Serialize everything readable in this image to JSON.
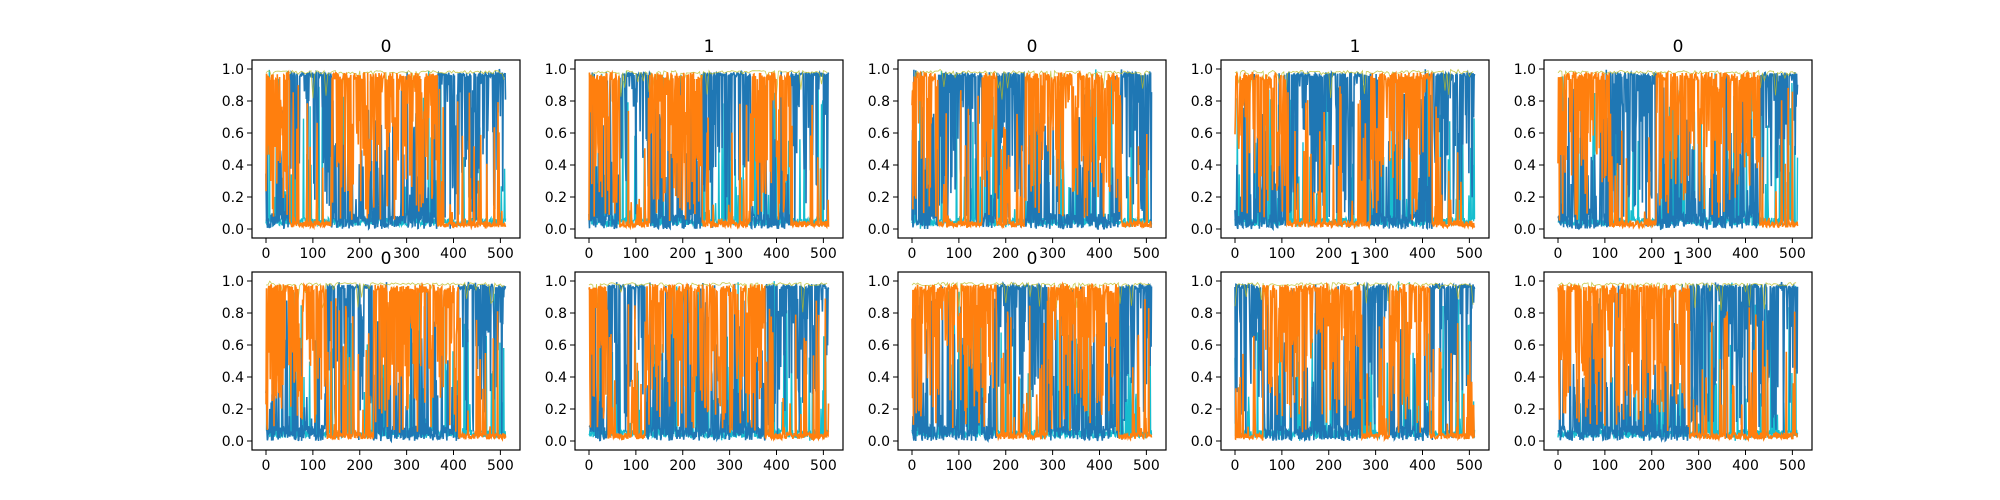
{
  "colors": {
    "series_a": "#1f77b4",
    "series_b": "#ff7f0e",
    "accent_cyan": "#17becf",
    "accent_olive": "#bcbd22",
    "accent_green": "#2ca02c"
  },
  "chart_data": [
    {
      "type": "line",
      "title": "0",
      "xlim": [
        0,
        512
      ],
      "ylim": [
        0,
        1
      ],
      "x_ticks": [
        "0",
        "100",
        "200",
        "300",
        "400",
        "500"
      ],
      "y_ticks": [
        "0.0",
        "0.2",
        "0.4",
        "0.6",
        "0.8",
        "1.0"
      ],
      "grid": false,
      "legend": "none",
      "dominant_series_b_ranges": [
        [
          0,
          50
        ],
        [
          140,
          365
        ]
      ]
    },
    {
      "type": "line",
      "title": "1",
      "xlim": [
        0,
        512
      ],
      "ylim": [
        0,
        1
      ],
      "x_ticks": [
        "0",
        "100",
        "200",
        "300",
        "400",
        "500"
      ],
      "y_ticks": [
        "0.0",
        "0.2",
        "0.4",
        "0.6",
        "0.8",
        "1.0"
      ],
      "grid": false,
      "legend": "none",
      "dominant_series_b_ranges": [
        [
          0,
          65
        ],
        [
          130,
          240
        ],
        [
          345,
          430
        ]
      ]
    },
    {
      "type": "line",
      "title": "0",
      "xlim": [
        0,
        512
      ],
      "ylim": [
        0,
        1
      ],
      "x_ticks": [
        "0",
        "100",
        "200",
        "300",
        "400",
        "500"
      ],
      "y_ticks": [
        "0.0",
        "0.2",
        "0.4",
        "0.6",
        "0.8",
        "1.0"
      ],
      "grid": false,
      "legend": "none",
      "dominant_series_b_ranges": [
        [
          0,
          55
        ],
        [
          150,
          180
        ],
        [
          240,
          445
        ]
      ]
    },
    {
      "type": "line",
      "title": "1",
      "xlim": [
        0,
        512
      ],
      "ylim": [
        0,
        1
      ],
      "x_ticks": [
        "0",
        "100",
        "200",
        "300",
        "400",
        "500"
      ],
      "y_ticks": [
        "0.0",
        "0.2",
        "0.4",
        "0.6",
        "0.8",
        "1.0"
      ],
      "grid": false,
      "legend": "none",
      "dominant_series_b_ranges": [
        [
          0,
          110
        ],
        [
          290,
          420
        ]
      ]
    },
    {
      "type": "line",
      "title": "0",
      "xlim": [
        0,
        512
      ],
      "ylim": [
        0,
        1
      ],
      "x_ticks": [
        "0",
        "100",
        "200",
        "300",
        "400",
        "500"
      ],
      "y_ticks": [
        "0.0",
        "0.2",
        "0.4",
        "0.6",
        "0.8",
        "1.0"
      ],
      "grid": false,
      "legend": "none",
      "dominant_series_b_ranges": [
        [
          0,
          110
        ],
        [
          210,
          430
        ]
      ]
    },
    {
      "type": "line",
      "title": "0",
      "xlim": [
        0,
        512
      ],
      "ylim": [
        0,
        1
      ],
      "x_ticks": [
        "0",
        "100",
        "200",
        "300",
        "400",
        "500"
      ],
      "y_ticks": [
        "0.0",
        "0.2",
        "0.4",
        "0.6",
        "0.8",
        "1.0"
      ],
      "grid": false,
      "legend": "none",
      "dominant_series_b_ranges": [
        [
          0,
          130
        ],
        [
          230,
          410
        ]
      ]
    },
    {
      "type": "line",
      "title": "1",
      "xlim": [
        0,
        512
      ],
      "ylim": [
        0,
        1
      ],
      "x_ticks": [
        "0",
        "100",
        "200",
        "300",
        "400",
        "500"
      ],
      "y_ticks": [
        "0.0",
        "0.2",
        "0.4",
        "0.6",
        "0.8",
        "1.0"
      ],
      "grid": false,
      "legend": "none",
      "dominant_series_b_ranges": [
        [
          0,
          40
        ],
        [
          120,
          375
        ]
      ]
    },
    {
      "type": "line",
      "title": "0",
      "xlim": [
        0,
        512
      ],
      "ylim": [
        0,
        1
      ],
      "x_ticks": [
        "0",
        "100",
        "200",
        "300",
        "400",
        "500"
      ],
      "y_ticks": [
        "0.0",
        "0.2",
        "0.4",
        "0.6",
        "0.8",
        "1.0"
      ],
      "grid": false,
      "legend": "none",
      "dominant_series_b_ranges": [
        [
          0,
          180
        ],
        [
          290,
          440
        ]
      ]
    },
    {
      "type": "line",
      "title": "1",
      "xlim": [
        0,
        512
      ],
      "ylim": [
        0,
        1
      ],
      "x_ticks": [
        "0",
        "100",
        "200",
        "300",
        "400",
        "500"
      ],
      "y_ticks": [
        "0.0",
        "0.2",
        "0.4",
        "0.6",
        "0.8",
        "1.0"
      ],
      "grid": false,
      "legend": "none",
      "dominant_series_b_ranges": [
        [
          60,
          270
        ],
        [
          330,
          415
        ]
      ]
    },
    {
      "type": "line",
      "title": "1",
      "xlim": [
        0,
        512
      ],
      "ylim": [
        0,
        1
      ],
      "x_ticks": [
        "0",
        "100",
        "200",
        "300",
        "400",
        "500"
      ],
      "y_ticks": [
        "0.0",
        "0.2",
        "0.4",
        "0.6",
        "0.8",
        "1.0"
      ],
      "grid": false,
      "legend": "none",
      "dominant_series_b_ranges": [
        [
          0,
          280
        ]
      ]
    }
  ]
}
